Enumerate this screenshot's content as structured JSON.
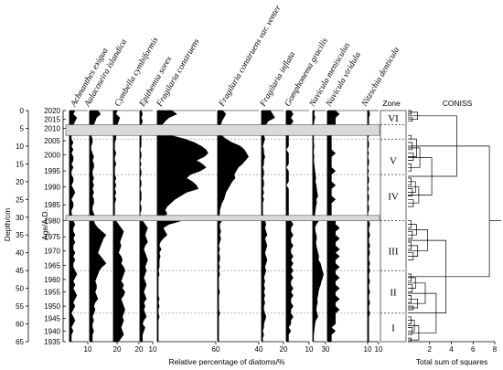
{
  "chart_data": {
    "type": "area",
    "depth_label": "Depth/cm",
    "age_label": "Age/A.D.",
    "x_label": "Relative percentage of diatoms/%",
    "zone_header": "Zone",
    "coniss_title": "CONISS",
    "coniss_xlabel": "Total sum of squares",
    "coniss_ticks": [
      "2",
      "4",
      "6",
      "8"
    ],
    "depth_ticks": [
      "0",
      "5",
      "10",
      "15",
      "20",
      "25",
      "30",
      "35",
      "40",
      "45",
      "50",
      "55",
      "60",
      "65"
    ],
    "age_ticks": [
      {
        "label": "2020",
        "depth": 0
      },
      {
        "label": "2015",
        "depth": 2.5
      },
      {
        "label": "2010",
        "depth": 5
      },
      {
        "label": "2005",
        "depth": 8.5
      },
      {
        "label": "2000",
        "depth": 12.5
      },
      {
        "label": "1995",
        "depth": 17
      },
      {
        "label": "1990",
        "depth": 21.5
      },
      {
        "label": "1985",
        "depth": 26.5
      },
      {
        "label": "1980",
        "depth": 31
      },
      {
        "label": "1975",
        "depth": 35.5
      },
      {
        "label": "1970",
        "depth": 39.5
      },
      {
        "label": "1965",
        "depth": 43.5
      },
      {
        "label": "1960",
        "depth": 47.5
      },
      {
        "label": "1955",
        "depth": 51
      },
      {
        "label": "1950",
        "depth": 55
      },
      {
        "label": "1945",
        "depth": 58.5
      },
      {
        "label": "1940",
        "depth": 62
      },
      {
        "label": "1935",
        "depth": 65
      }
    ],
    "gaps": [
      [
        4,
        7
      ],
      [
        29.5,
        31
      ]
    ],
    "zones": [
      {
        "label": "VI",
        "center": 2
      },
      {
        "label": "V",
        "center": 14
      },
      {
        "label": "IV",
        "center": 24
      },
      {
        "label": "III",
        "center": 39.5
      },
      {
        "label": "II",
        "center": 51
      },
      {
        "label": "I",
        "center": 61
      }
    ],
    "zone_boundaries": [
      4,
      8,
      18,
      31,
      45,
      57
    ],
    "depths": [
      0,
      1,
      2,
      3,
      4,
      7,
      8,
      9,
      10,
      11,
      12,
      13,
      14,
      15,
      16,
      17,
      18,
      19,
      20,
      21,
      22,
      23,
      24,
      25,
      26,
      27,
      28,
      29,
      30,
      31,
      32,
      33,
      34,
      35,
      36,
      37,
      38,
      39,
      40,
      41,
      42,
      43,
      44,
      45,
      46,
      47,
      48,
      49,
      50,
      51,
      52,
      53,
      54,
      55,
      56,
      57,
      58,
      59,
      60,
      61,
      62,
      63,
      64,
      65
    ],
    "series": [
      {
        "name": "Achnanthes exigua",
        "max": 10,
        "tick": "10",
        "values": [
          3,
          2,
          4,
          3,
          2,
          1,
          1,
          2,
          1,
          2,
          1,
          2,
          2,
          1,
          2,
          1,
          1,
          2,
          2,
          1,
          2,
          3,
          2,
          1,
          2,
          2,
          1,
          1,
          2,
          2,
          3,
          2,
          2,
          3,
          2,
          3,
          2,
          2,
          3,
          2,
          3,
          2,
          2,
          3,
          4,
          3,
          2,
          3,
          2,
          3,
          4,
          3,
          2,
          3,
          2,
          1,
          2,
          3,
          2,
          1,
          2,
          1,
          1,
          1
        ]
      },
      {
        "name": "Aulacoseira islandica",
        "max": 20,
        "tick": "20",
        "values": [
          6,
          8,
          5,
          4,
          3,
          1,
          2,
          2,
          1,
          1,
          2,
          3,
          2,
          3,
          3,
          2,
          2,
          3,
          2,
          3,
          2,
          3,
          2,
          3,
          3,
          2,
          2,
          3,
          4,
          3,
          4,
          6,
          9,
          12,
          10,
          9,
          8,
          7,
          6,
          8,
          10,
          12,
          9,
          7,
          6,
          5,
          4,
          5,
          5,
          4,
          5,
          6,
          4,
          3,
          4,
          3,
          2,
          3,
          2,
          2,
          3,
          2,
          2,
          2
        ]
      },
      {
        "name": "Cymbella cymbiformis",
        "max": 20,
        "tick": "20",
        "values": [
          3,
          2,
          5,
          4,
          3,
          2,
          2,
          1,
          1,
          1,
          2,
          1,
          1,
          2,
          1,
          1,
          1,
          2,
          1,
          2,
          1,
          2,
          1,
          2,
          1,
          1,
          1,
          1,
          1,
          2,
          4,
          6,
          8,
          7,
          6,
          5,
          6,
          5,
          4,
          6,
          7,
          6,
          8,
          9,
          8,
          7,
          6,
          8,
          7,
          9,
          8,
          6,
          7,
          8,
          9,
          8,
          7,
          8,
          7,
          6,
          7,
          8,
          6,
          4
        ]
      },
      {
        "name": "Epithemia sorex",
        "max": 10,
        "tick": "10",
        "values": [
          1,
          2,
          1,
          2,
          1,
          1,
          1,
          1,
          1,
          0,
          1,
          1,
          0,
          1,
          0,
          1,
          1,
          0,
          1,
          1,
          0,
          1,
          1,
          1,
          0,
          1,
          1,
          0,
          1,
          2,
          4,
          6,
          5,
          4,
          5,
          6,
          4,
          3,
          4,
          5,
          6,
          5,
          4,
          5,
          4,
          3,
          4,
          5,
          4,
          3,
          4,
          5,
          3,
          4,
          3,
          4,
          5,
          3,
          2,
          4,
          3,
          2,
          2,
          2
        ]
      },
      {
        "name": "Fragilaria construens",
        "max": 60,
        "tick": "60",
        "values": [
          15,
          20,
          12,
          8,
          5,
          14,
          28,
          38,
          45,
          50,
          52,
          48,
          40,
          46,
          50,
          44,
          34,
          30,
          36,
          40,
          42,
          30,
          24,
          18,
          14,
          10,
          8,
          10,
          6,
          25,
          12,
          6,
          8,
          10,
          6,
          3,
          2,
          4,
          2,
          3,
          2,
          2,
          2,
          1,
          2,
          1,
          1,
          1,
          1,
          1,
          1,
          2,
          1,
          2,
          1,
          1,
          2,
          1,
          1,
          1,
          1,
          1,
          1,
          1
        ]
      },
      {
        "name": "Fragilaria construens var. venter",
        "max": 40,
        "tick": "40",
        "values": [
          5,
          8,
          6,
          4,
          3,
          4,
          8,
          14,
          22,
          26,
          28,
          30,
          27,
          24,
          20,
          18,
          16,
          17,
          14,
          12,
          10,
          8,
          7,
          6,
          4,
          3,
          2,
          2,
          1,
          4,
          2,
          2,
          3,
          2,
          3,
          2,
          1,
          2,
          1,
          2,
          2,
          1,
          2,
          1,
          2,
          1,
          1,
          1,
          1,
          2,
          1,
          1,
          1,
          1,
          1,
          2,
          1,
          1,
          1,
          1,
          1,
          1,
          1,
          1
        ]
      },
      {
        "name": "Fragilaria inflata",
        "max": 20,
        "tick": "20",
        "values": [
          8,
          10,
          12,
          6,
          4,
          2,
          3,
          2,
          1,
          2,
          2,
          3,
          2,
          2,
          1,
          2,
          2,
          1,
          2,
          2,
          1,
          2,
          1,
          2,
          1,
          1,
          1,
          1,
          2,
          3,
          4,
          3,
          4,
          5,
          3,
          4,
          5,
          4,
          3,
          4,
          5,
          4,
          3,
          4,
          3,
          2,
          3,
          2,
          3,
          2,
          3,
          2,
          3,
          2,
          2,
          3,
          4,
          3,
          2,
          2,
          1,
          2,
          1,
          1
        ]
      },
      {
        "name": "Gomphonema gracilis",
        "max": 10,
        "tick": "10",
        "values": [
          2,
          3,
          2,
          3,
          2,
          1,
          1,
          1,
          1,
          0,
          1,
          1,
          1,
          1,
          0,
          1,
          1,
          1,
          1,
          0,
          1,
          1,
          1,
          1,
          1,
          1,
          1,
          1,
          1,
          2,
          3,
          2,
          2,
          3,
          2,
          2,
          3,
          2,
          2,
          3,
          2,
          3,
          2,
          3,
          2,
          3,
          2,
          2,
          3,
          2,
          3,
          2,
          2,
          3,
          2,
          2,
          3,
          2,
          2,
          1,
          2,
          1,
          1,
          1
        ]
      },
      {
        "name": "Navicula menisculus",
        "max": 30,
        "tick": "30",
        "values": [
          4,
          3,
          5,
          3,
          2,
          2,
          2,
          2,
          3,
          2,
          2,
          3,
          2,
          3,
          4,
          5,
          6,
          7,
          6,
          8,
          9,
          10,
          12,
          8,
          9,
          7,
          6,
          5,
          5,
          14,
          8,
          5,
          6,
          8,
          9,
          7,
          8,
          10,
          12,
          14,
          13,
          18,
          20,
          22,
          25,
          23,
          20,
          18,
          15,
          13,
          12,
          10,
          11,
          9,
          8,
          10,
          12,
          7,
          5,
          4,
          3,
          2,
          2,
          2
        ]
      },
      {
        "name": "Navicula viridula",
        "max": 10,
        "tick": "10",
        "values": [
          2,
          3,
          2,
          2,
          2,
          1,
          1,
          1,
          1,
          1,
          2,
          1,
          1,
          1,
          1,
          2,
          1,
          1,
          1,
          2,
          1,
          1,
          1,
          2,
          1,
          1,
          1,
          1,
          1,
          2,
          2,
          3,
          2,
          2,
          3,
          2,
          2,
          3,
          2,
          3,
          2,
          2,
          3,
          2,
          2,
          3,
          2,
          2,
          3,
          2,
          2,
          3,
          2,
          2,
          3,
          2,
          2,
          2,
          2,
          1,
          2,
          1,
          1,
          1
        ]
      },
      {
        "name": "Nitzschia denticula",
        "max": 10,
        "tick": "10",
        "values": [
          1,
          2,
          1,
          1,
          1,
          1,
          0,
          1,
          1,
          0,
          1,
          0,
          1,
          1,
          0,
          1,
          0,
          1,
          1,
          0,
          1,
          0,
          1,
          1,
          0,
          1,
          1,
          0,
          1,
          1,
          2,
          1,
          1,
          2,
          1,
          1,
          2,
          1,
          2,
          1,
          1,
          2,
          1,
          2,
          1,
          1,
          2,
          1,
          1,
          2,
          1,
          1,
          2,
          1,
          1,
          2,
          1,
          1,
          1,
          1,
          1,
          1,
          1,
          1
        ]
      }
    ]
  }
}
